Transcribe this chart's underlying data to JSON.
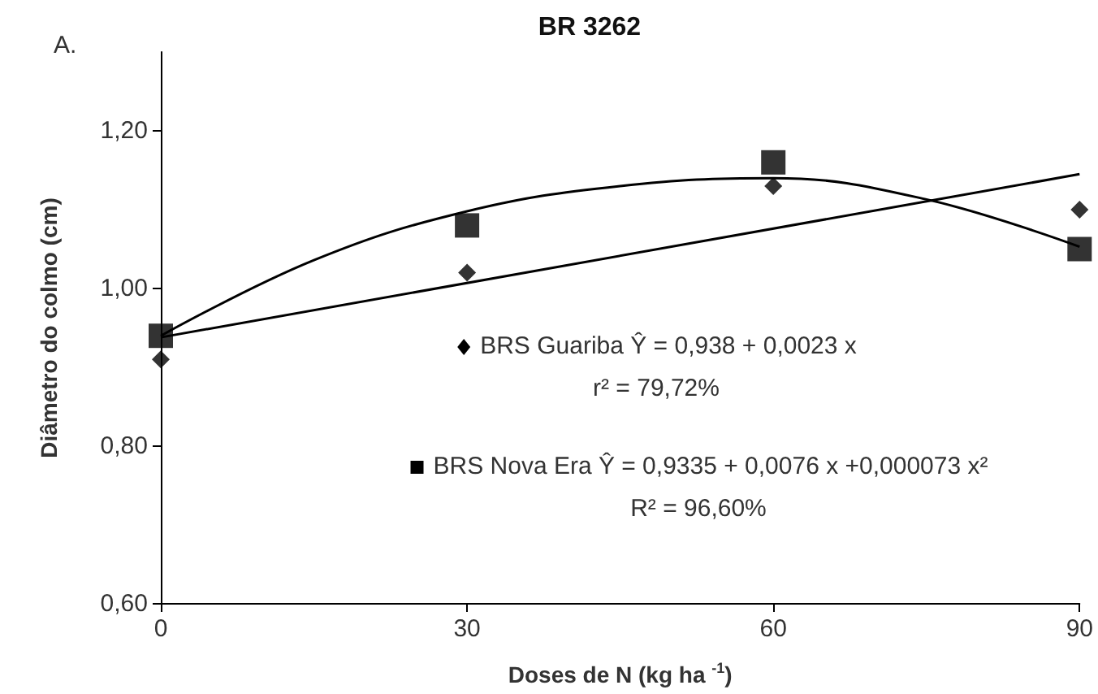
{
  "chart_data": {
    "type": "scatter",
    "title": "BR 3262",
    "xlabel": "Doses de N (kg ha $^{-1}$)",
    "ylabel": "Diâmetro do colmo (cm)",
    "annotations": [
      "A.",
      "BRS Guariba Ŷ  =  0,938 + 0,0023 x",
      "r² = 79,72%",
      "BRS Nova Era Ŷ = 0,9335 + 0,0076 x +0,000073 x²",
      "R² = 96,60%"
    ],
    "x": [
      0,
      30,
      60,
      90
    ],
    "series": [
      {
        "color": "#000000",
        "marker": "diamond",
        "values": [
          0.91,
          1.02,
          1.13,
          1.1
        ]
      },
      {
        "color": "#000000",
        "marker": "square",
        "values": [
          0.94,
          1.08,
          1.16,
          1.05
        ]
      },
      {
        "type": "line",
        "color": "#000000",
        "marker": "none",
        "x": [
          0,
          90
        ],
        "values": [
          0.938,
          1.145
        ]
      },
      {
        "type": "line",
        "color": "#000000",
        "marker": "none",
        "x": [
          0,
          15,
          30,
          45,
          60,
          75,
          90
        ],
        "values": [
          0.94,
          1.036,
          1.098,
          1.13,
          1.14,
          1.113,
          1.053
        ]
      }
    ],
    "xlim": [
      0,
      90
    ],
    "xticks": [
      0,
      30,
      60,
      90
    ],
    "ylim": [
      0.6,
      1.3
    ],
    "yticks": [
      {
        "value": 0.6,
        "label": "0,60"
      },
      {
        "value": 0.8,
        "label": "0,80"
      },
      {
        "value": 1.0,
        "label": "1,00"
      },
      {
        "value": 1.2,
        "label": "1,20"
      }
    ],
    "grid": false
  }
}
